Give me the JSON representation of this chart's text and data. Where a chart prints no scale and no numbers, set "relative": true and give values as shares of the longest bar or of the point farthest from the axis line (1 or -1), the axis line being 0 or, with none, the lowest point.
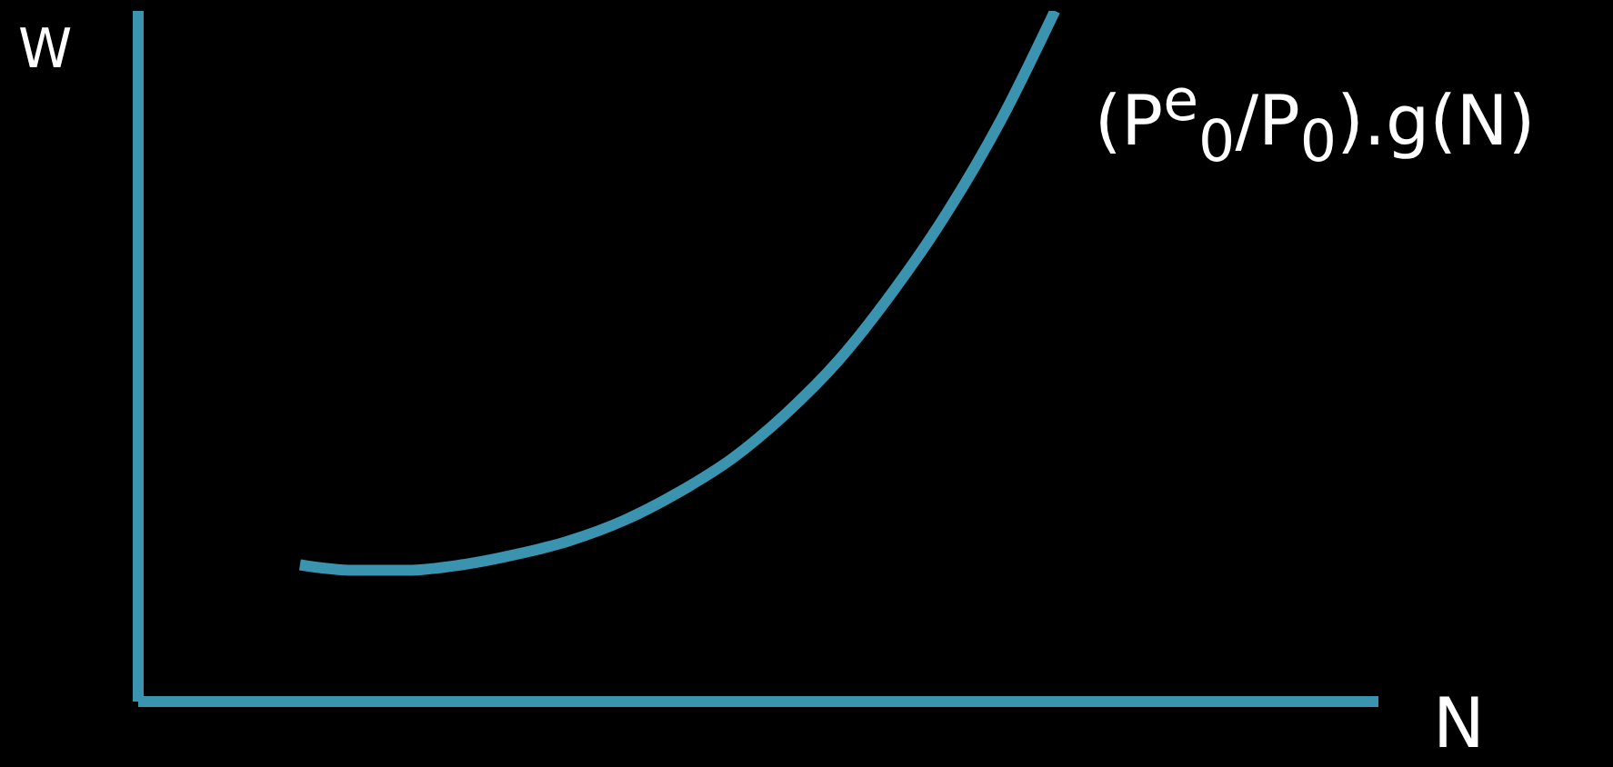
{
  "chart_data": {
    "type": "line",
    "relative": true,
    "xlabel": "N",
    "ylabel": "W",
    "categories": [
      null,
      null,
      null,
      null,
      null,
      null,
      null,
      null,
      null,
      null,
      null,
      null,
      null,
      null,
      null,
      null,
      null,
      null,
      null,
      null,
      null,
      null,
      null,
      null
    ],
    "series": [
      {
        "name": "(P$^{e}$$_{0}$/P$_{0}$).g(N)",
        "color": "#3a94b0",
        "values": [
          null,
          null,
          null,
          0.198,
          0.19,
          0.19,
          0.198,
          0.213,
          0.233,
          0.262,
          0.302,
          0.351,
          0.416,
          0.495,
          0.594,
          0.708,
          0.842,
          1,
          null,
          null,
          null,
          null,
          null,
          null
        ]
      }
    ],
    "legend": false,
    "grid": false,
    "marker": "none",
    "line_style": "solid"
  }
}
